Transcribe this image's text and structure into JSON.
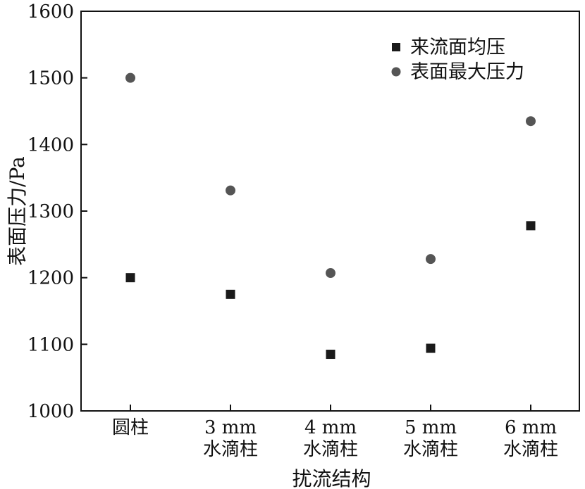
{
  "chart_data": {
    "type": "scatter",
    "title": "",
    "xlabel": "扰流结构",
    "ylabel": "表面压力/Pa",
    "ylim": [
      1000,
      1600
    ],
    "yticks": [
      1000,
      1100,
      1200,
      1300,
      1400,
      1500,
      1600
    ],
    "categories": [
      [
        "圆柱"
      ],
      [
        "3 mm",
        "水滴柱"
      ],
      [
        "4 mm",
        "水滴柱"
      ],
      [
        "5 mm",
        "水滴柱"
      ],
      [
        "6 mm",
        "水滴柱"
      ]
    ],
    "legend_position": "top-right",
    "grid": false,
    "series": [
      {
        "name": "来流面均压",
        "marker": "square",
        "color": "#1a1a1a",
        "values": [
          1200,
          1175,
          1085,
          1094,
          1278
        ]
      },
      {
        "name": "表面最大压力",
        "marker": "circle",
        "color": "#555555",
        "values": [
          1500,
          1331,
          1207,
          1228,
          1435
        ]
      }
    ]
  }
}
